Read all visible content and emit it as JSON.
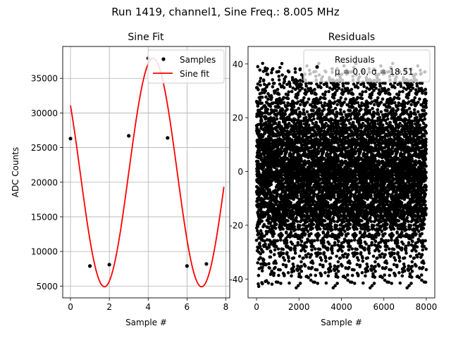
{
  "suptitle": "Run 1419, channel1, Sine Freq.: 8.005 MHz",
  "chart_data": [
    {
      "type": "line",
      "title": "Sine Fit",
      "xlabel": "Sample #",
      "ylabel": "ADC Counts",
      "xlim": [
        -0.4,
        8.2
      ],
      "ylim": [
        3300,
        39600
      ],
      "xticks": [
        0,
        2,
        4,
        6,
        8
      ],
      "yticks": [
        5000,
        10000,
        15000,
        20000,
        25000,
        30000,
        35000
      ],
      "grid": true,
      "legend": {
        "placement": "top-right",
        "entries": [
          "Samples",
          "Sine fit"
        ]
      },
      "series": [
        {
          "name": "Samples",
          "kind": "scatter",
          "color": "#000000",
          "x": [
            0,
            1,
            2,
            3,
            4,
            5,
            6,
            7
          ],
          "y": [
            26300,
            7900,
            8100,
            26700,
            37900,
            26400,
            7900,
            8200
          ]
        },
        {
          "name": "Sine fit",
          "kind": "line",
          "color": "#ff0000",
          "model": {
            "offset": 21400,
            "amplitude": 16500,
            "period_samples": 5,
            "phase_deg": 144
          },
          "x_range": [
            0,
            7.9
          ]
        }
      ]
    },
    {
      "type": "scatter",
      "title": "Residuals",
      "xlabel": "Sample #",
      "ylabel": "",
      "xlim": [
        -400,
        8400
      ],
      "ylim": [
        -47,
        46.5
      ],
      "xticks": [
        0,
        2000,
        4000,
        6000,
        8000
      ],
      "yticks": [
        -40,
        -20,
        0,
        20,
        40
      ],
      "grid": false,
      "legend": {
        "placement": "top-right",
        "entries": [
          "Residuals",
          "μ = 0.0, σ = 18.51"
        ]
      },
      "series": [
        {
          "name": "Residuals",
          "color": "#000000",
          "n_points": 8000,
          "x_range": [
            0,
            8000
          ],
          "distribution": {
            "mean": 0.0,
            "std": 18.51,
            "min": -43.5,
            "max": 40.5
          }
        }
      ]
    }
  ]
}
